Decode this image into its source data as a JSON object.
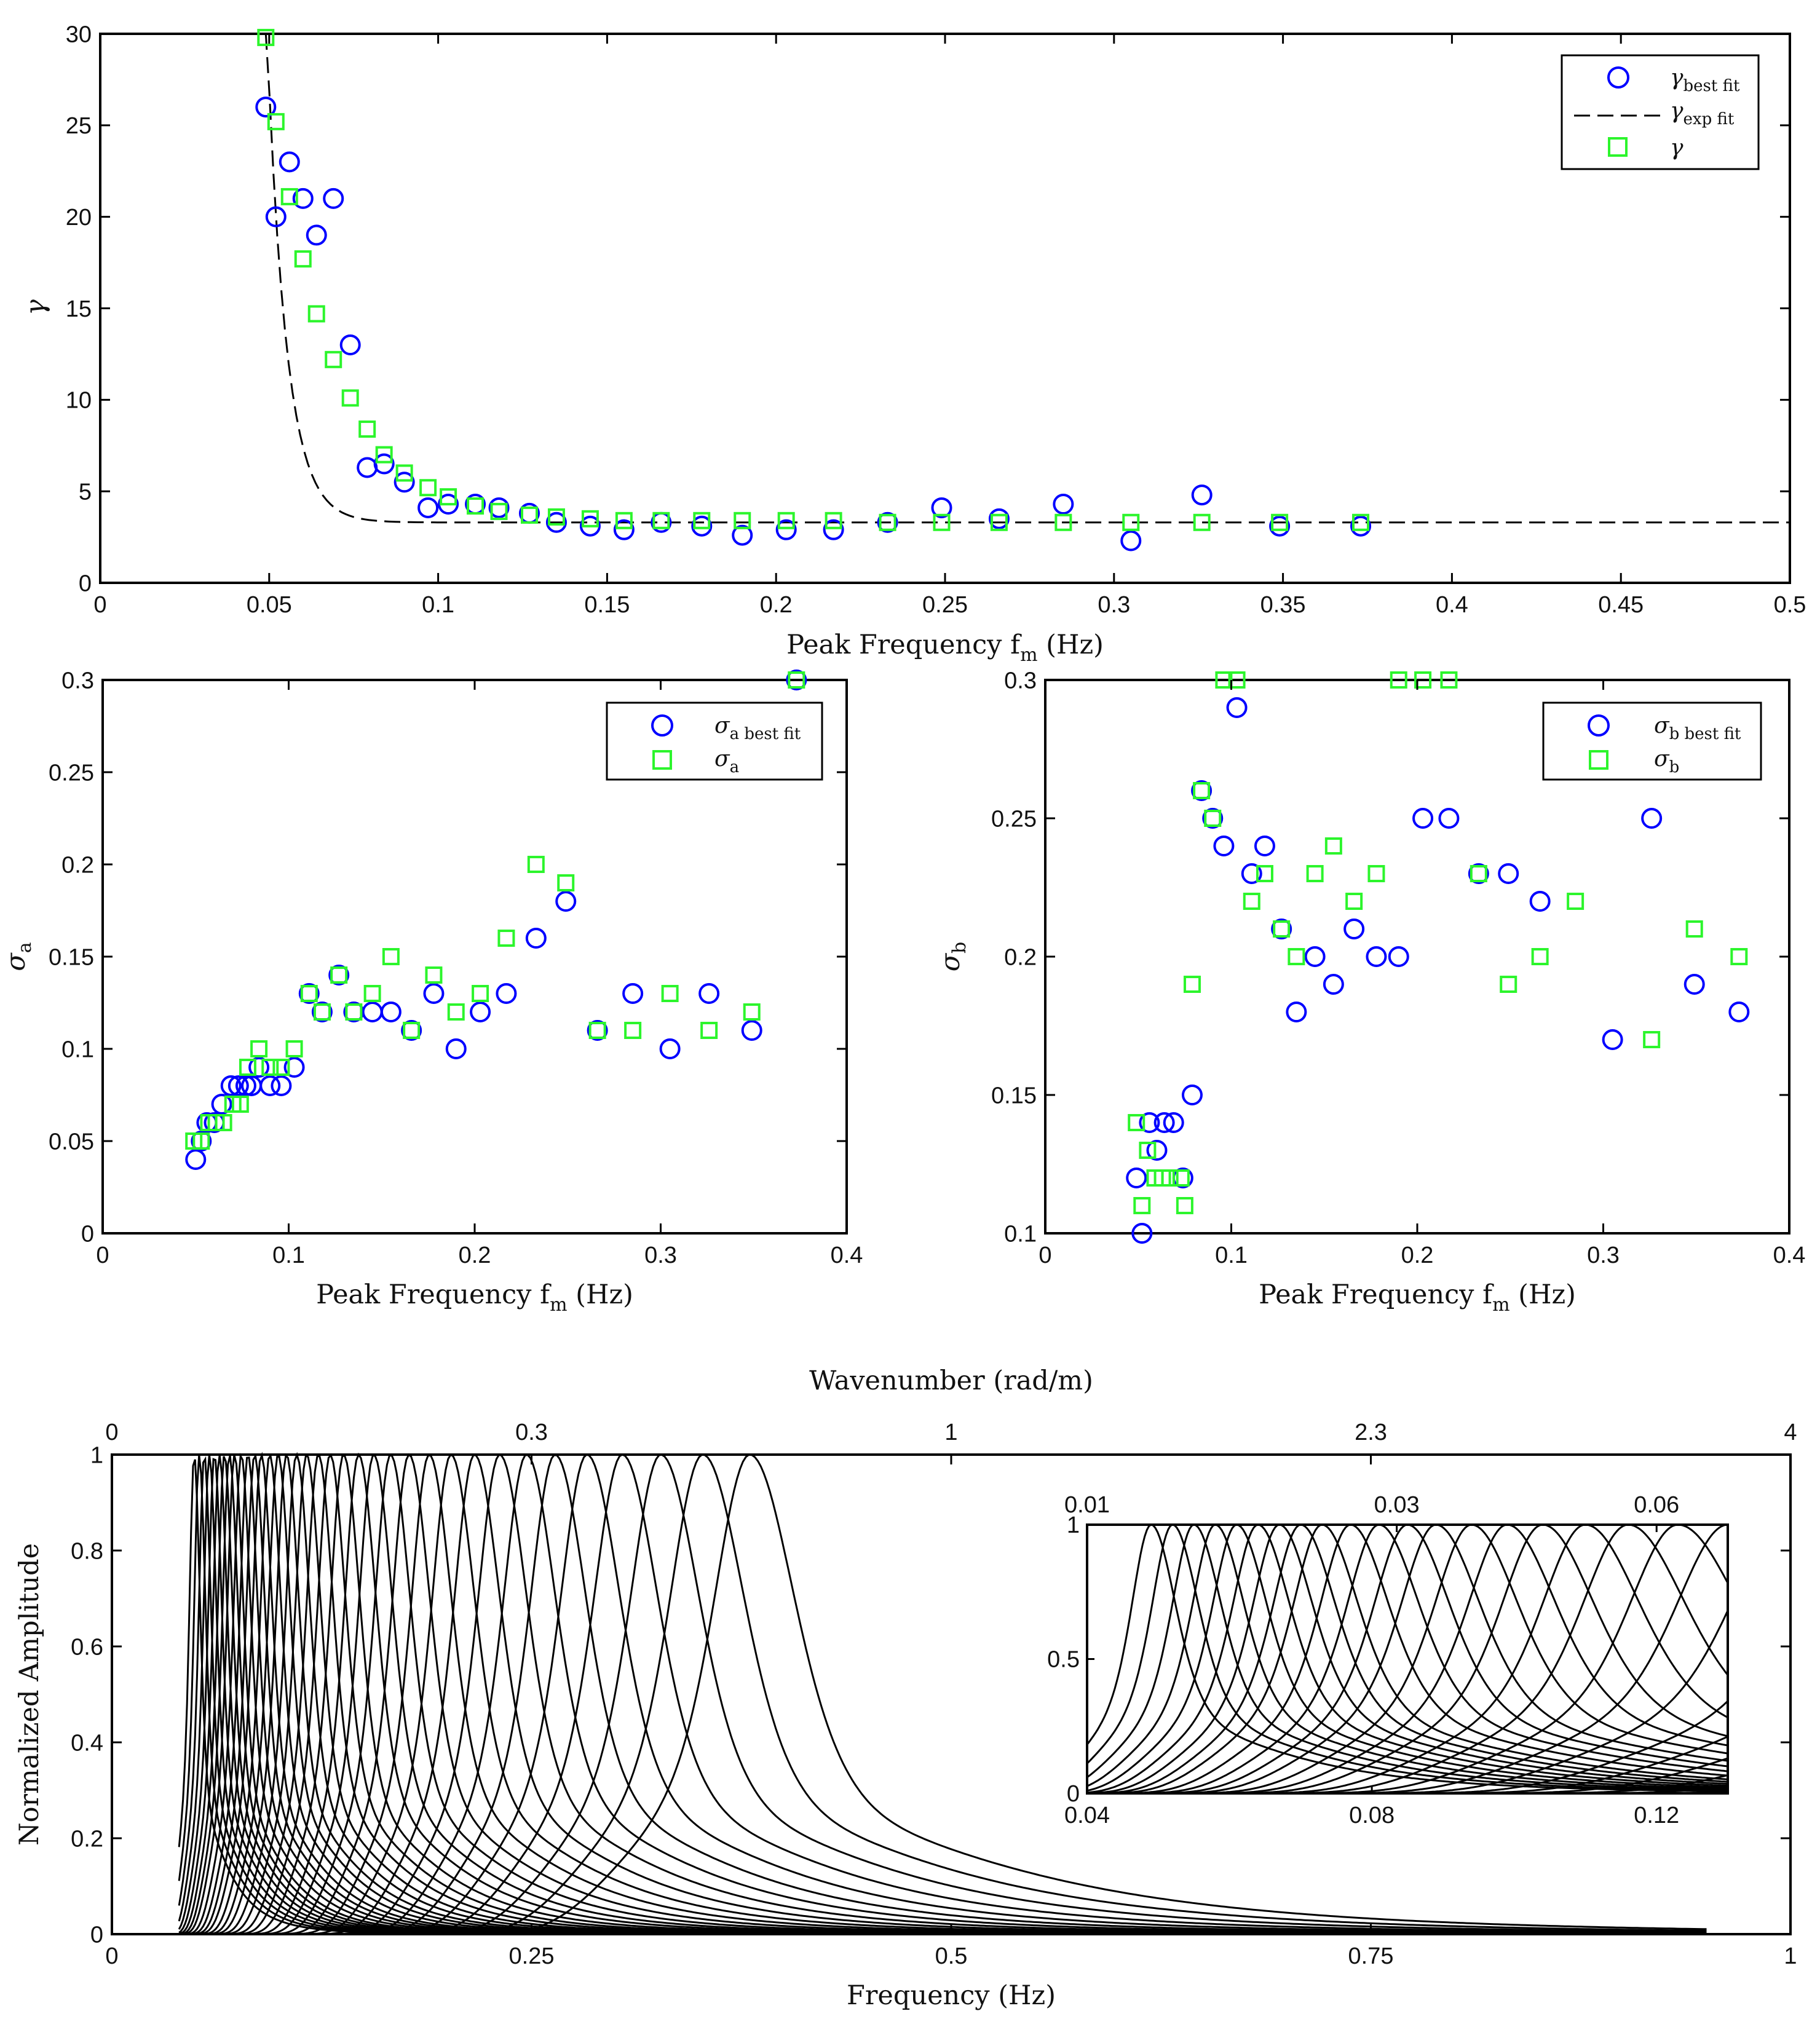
{
  "colors": {
    "circle": "#0000ff",
    "square": "#2cf52c",
    "curve": "#000000"
  },
  "chart_data": [
    {
      "type": "scatter",
      "id": "gamma",
      "title": "",
      "xlabel": "Peak Frequency f",
      "xlabel_sub": "m",
      "xlabel_unit": " (Hz)",
      "ylabel": "γ",
      "xlim": [
        0,
        0.5
      ],
      "ylim": [
        0,
        30
      ],
      "xticks": [
        "0",
        "0.05",
        "0.1",
        "0.15",
        "0.2",
        "0.25",
        "0.3",
        "0.35",
        "0.4",
        "0.45",
        "0.5"
      ],
      "yticks": [
        "0",
        "5",
        "10",
        "15",
        "20",
        "25",
        "30"
      ],
      "legend": [
        {
          "sym": "γ",
          "sub": "best fit",
          "marker": "circle"
        },
        {
          "sym": "γ",
          "sub": "exp fit",
          "marker": "dashed"
        },
        {
          "sym": "γ",
          "sub": "",
          "marker": "square"
        }
      ],
      "series": [
        {
          "name": "γ best fit",
          "marker": "circle",
          "x": [
            0.049,
            0.052,
            0.056,
            0.06,
            0.064,
            0.069,
            0.074,
            0.079,
            0.084,
            0.09,
            0.097,
            0.103,
            0.111,
            0.118,
            0.127,
            0.135,
            0.145,
            0.155,
            0.166,
            0.178,
            0.19,
            0.203,
            0.217,
            0.233,
            0.249,
            0.266,
            0.285,
            0.305,
            0.326,
            0.349,
            0.373
          ],
          "y": [
            26,
            20,
            23,
            21,
            19,
            21,
            13,
            6.3,
            6.5,
            5.5,
            4.1,
            4.3,
            4.3,
            4.1,
            3.8,
            3.3,
            3.1,
            2.9,
            3.3,
            3.1,
            2.6,
            2.9,
            2.9,
            3.3,
            4.1,
            3.5,
            4.3,
            2.3,
            4.8,
            3.1,
            3.1
          ]
        },
        {
          "name": "γ",
          "marker": "square",
          "x": [
            0.049,
            0.052,
            0.056,
            0.06,
            0.064,
            0.069,
            0.074,
            0.079,
            0.084,
            0.09,
            0.097,
            0.103,
            0.111,
            0.118,
            0.127,
            0.135,
            0.145,
            0.155,
            0.166,
            0.178,
            0.19,
            0.203,
            0.217,
            0.233,
            0.249,
            0.266,
            0.285,
            0.305,
            0.326,
            0.349,
            0.373
          ],
          "y": [
            29.8,
            25.2,
            21.1,
            17.7,
            14.7,
            12.2,
            10.1,
            8.4,
            7.0,
            6.0,
            5.2,
            4.7,
            4.2,
            3.9,
            3.7,
            3.6,
            3.5,
            3.4,
            3.4,
            3.4,
            3.4,
            3.4,
            3.4,
            3.3,
            3.3,
            3.3,
            3.3,
            3.3,
            3.3,
            3.3,
            3.3
          ]
        }
      ],
      "fit_curve": {
        "name": "γ exp fit",
        "style": "dashed",
        "a": 150000,
        "b": 175,
        "c": 3.3,
        "x_start": 0.049,
        "x_end": 0.5
      }
    },
    {
      "type": "scatter",
      "id": "sigma_a",
      "xlabel": "Peak Frequency f",
      "xlabel_sub": "m",
      "xlabel_unit": " (Hz)",
      "ylabel": "σ",
      "ylabel_sub": "a",
      "xlim": [
        0,
        0.4
      ],
      "ylim": [
        0,
        0.3
      ],
      "xticks": [
        "0",
        "0.1",
        "0.2",
        "0.3",
        "0.4"
      ],
      "yticks": [
        "0",
        "0.05",
        "0.1",
        "0.15",
        "0.2",
        "0.25",
        "0.3"
      ],
      "legend": [
        {
          "sym": "σ",
          "sub": "a best fit",
          "marker": "circle"
        },
        {
          "sym": "σ",
          "sub": "a",
          "marker": "square"
        }
      ],
      "series": [
        {
          "name": "σa best fit",
          "marker": "circle",
          "x": [
            0.05,
            0.053,
            0.056,
            0.06,
            0.064,
            0.069,
            0.073,
            0.077,
            0.08,
            0.084,
            0.09,
            0.096,
            0.103,
            0.111,
            0.118,
            0.127,
            0.135,
            0.145,
            0.155,
            0.166,
            0.178,
            0.19,
            0.203,
            0.217,
            0.233,
            0.249,
            0.266,
            0.285,
            0.305,
            0.326,
            0.349,
            0.373
          ],
          "y": [
            0.04,
            0.05,
            0.06,
            0.06,
            0.07,
            0.08,
            0.08,
            0.08,
            0.08,
            0.09,
            0.08,
            0.08,
            0.09,
            0.13,
            0.12,
            0.14,
            0.12,
            0.12,
            0.12,
            0.11,
            0.13,
            0.1,
            0.12,
            0.13,
            0.16,
            0.18,
            0.11,
            0.13,
            0.1,
            0.13,
            0.11,
            0.3
          ]
        },
        {
          "name": "σa",
          "marker": "square",
          "x": [
            0.049,
            0.053,
            0.057,
            0.061,
            0.065,
            0.07,
            0.074,
            0.078,
            0.084,
            0.09,
            0.096,
            0.103,
            0.111,
            0.118,
            0.127,
            0.135,
            0.145,
            0.155,
            0.166,
            0.178,
            0.19,
            0.203,
            0.217,
            0.233,
            0.249,
            0.266,
            0.285,
            0.305,
            0.326,
            0.349,
            0.373
          ],
          "y": [
            0.05,
            0.05,
            0.06,
            0.06,
            0.06,
            0.07,
            0.07,
            0.09,
            0.1,
            0.09,
            0.09,
            0.1,
            0.13,
            0.12,
            0.14,
            0.12,
            0.13,
            0.15,
            0.11,
            0.14,
            0.12,
            0.13,
            0.16,
            0.2,
            0.19,
            0.11,
            0.11,
            0.13,
            0.11,
            0.12,
            0.3
          ]
        }
      ]
    },
    {
      "type": "scatter",
      "id": "sigma_b",
      "xlabel": "Peak Frequency f",
      "xlabel_sub": "m",
      "xlabel_unit": " (Hz)",
      "ylabel": "σ",
      "ylabel_sub": "b",
      "xlim": [
        0,
        0.4
      ],
      "ylim": [
        0.1,
        0.3
      ],
      "xticks": [
        "0",
        "0.1",
        "0.2",
        "0.3",
        "0.4"
      ],
      "yticks": [
        "0.1",
        "0.15",
        "0.2",
        "0.25",
        "0.3"
      ],
      "legend": [
        {
          "sym": "σ",
          "sub": "b best fit",
          "marker": "circle"
        },
        {
          "sym": "σ",
          "sub": "b",
          "marker": "square"
        }
      ],
      "series": [
        {
          "name": "σb best fit",
          "marker": "circle",
          "x": [
            0.049,
            0.052,
            0.056,
            0.06,
            0.064,
            0.069,
            0.074,
            0.079,
            0.084,
            0.09,
            0.096,
            0.103,
            0.111,
            0.118,
            0.127,
            0.135,
            0.145,
            0.155,
            0.166,
            0.178,
            0.19,
            0.203,
            0.217,
            0.233,
            0.249,
            0.266,
            0.305,
            0.326,
            0.349,
            0.373
          ],
          "y": [
            0.12,
            0.1,
            0.14,
            0.13,
            0.14,
            0.14,
            0.12,
            0.15,
            0.26,
            0.25,
            0.24,
            0.29,
            0.23,
            0.24,
            0.21,
            0.18,
            0.2,
            0.19,
            0.21,
            0.2,
            0.2,
            0.25,
            0.25,
            0.23,
            0.23,
            0.22,
            0.17,
            0.25,
            0.19,
            0.18
          ]
        },
        {
          "name": "σb",
          "marker": "square",
          "x": [
            0.049,
            0.052,
            0.055,
            0.059,
            0.063,
            0.067,
            0.073,
            0.075,
            0.079,
            0.084,
            0.09,
            0.096,
            0.103,
            0.111,
            0.118,
            0.127,
            0.135,
            0.145,
            0.155,
            0.166,
            0.178,
            0.19,
            0.203,
            0.217,
            0.233,
            0.249,
            0.266,
            0.285,
            0.326,
            0.349,
            0.373
          ],
          "y": [
            0.14,
            0.11,
            0.13,
            0.12,
            0.12,
            0.12,
            0.12,
            0.11,
            0.19,
            0.26,
            0.25,
            0.3,
            0.3,
            0.22,
            0.23,
            0.21,
            0.2,
            0.23,
            0.24,
            0.22,
            0.23,
            0.3,
            0.3,
            0.3,
            0.23,
            0.19,
            0.2,
            0.22,
            0.17,
            0.21,
            0.2
          ]
        }
      ]
    },
    {
      "type": "line",
      "id": "spectra",
      "xlabel": "Frequency (Hz)",
      "ylabel": "Normalized Amplitude",
      "top_xlabel": "Wavenumber (rad/m)",
      "xlim": [
        0,
        1
      ],
      "ylim": [
        0,
        1
      ],
      "xticks": [
        "0",
        "0.25",
        "0.5",
        "0.75",
        "1"
      ],
      "yticks": [
        "0",
        "0.2",
        "0.4",
        "0.6",
        "0.8",
        "1"
      ],
      "top_xticks": [
        "0",
        "0.3",
        "1",
        "2.3",
        "4"
      ],
      "peak_frequencies": [
        0.049,
        0.052,
        0.055,
        0.058,
        0.061,
        0.064,
        0.067,
        0.07,
        0.073,
        0.077,
        0.081,
        0.085,
        0.089,
        0.094,
        0.099,
        0.104,
        0.11,
        0.116,
        0.123,
        0.13,
        0.138,
        0.147,
        0.156,
        0.166,
        0.177,
        0.189,
        0.202,
        0.216,
        0.231,
        0.247,
        0.264,
        0.283,
        0.304,
        0.327,
        0.352,
        0.38
      ],
      "curve_range": [
        0.04,
        0.95
      ],
      "inset": {
        "xlim": [
          0.04,
          0.13
        ],
        "ylim": [
          0,
          1
        ],
        "xticks": [
          "0.04",
          "0.08",
          "0.12"
        ],
        "yticks": [
          "0",
          "0.5",
          "1"
        ],
        "top_xticks": [
          "0.01",
          "0.03",
          "0.06"
        ]
      }
    }
  ]
}
